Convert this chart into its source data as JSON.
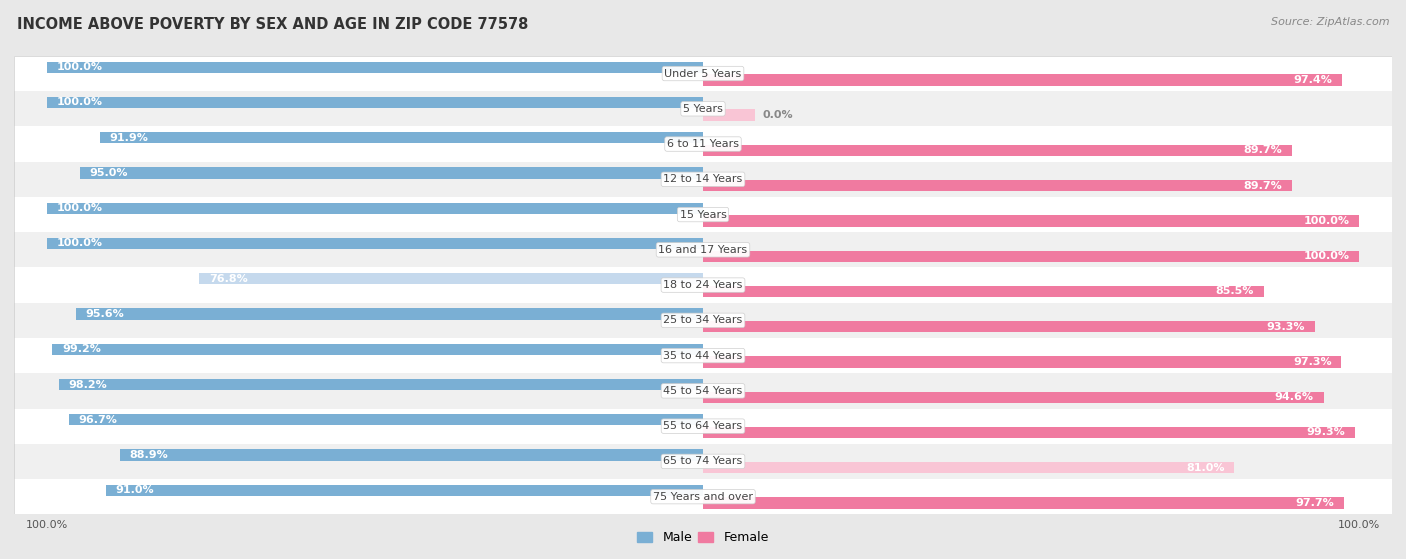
{
  "title": "INCOME ABOVE POVERTY BY SEX AND AGE IN ZIP CODE 77578",
  "source": "Source: ZipAtlas.com",
  "categories": [
    "Under 5 Years",
    "5 Years",
    "6 to 11 Years",
    "12 to 14 Years",
    "15 Years",
    "16 and 17 Years",
    "18 to 24 Years",
    "25 to 34 Years",
    "35 to 44 Years",
    "45 to 54 Years",
    "55 to 64 Years",
    "65 to 74 Years",
    "75 Years and over"
  ],
  "male": [
    100.0,
    100.0,
    91.9,
    95.0,
    100.0,
    100.0,
    76.8,
    95.6,
    99.2,
    98.2,
    96.7,
    88.9,
    91.0
  ],
  "female": [
    97.4,
    0.0,
    89.7,
    89.7,
    100.0,
    100.0,
    85.5,
    93.3,
    97.3,
    94.6,
    99.3,
    81.0,
    97.7
  ],
  "male_color": "#7aafd4",
  "female_color": "#f07aa0",
  "male_light_color": "#c5d9ed",
  "female_light_color": "#f9c5d5",
  "bg_color": "#e8e8e8",
  "row_color_odd": "#f0f0f0",
  "row_color_even": "#ffffff",
  "legend_male": "Male",
  "legend_female": "Female",
  "title_fontsize": 10.5,
  "label_fontsize": 8.0,
  "category_fontsize": 8.0,
  "source_fontsize": 8,
  "axis_label_fontsize": 8
}
